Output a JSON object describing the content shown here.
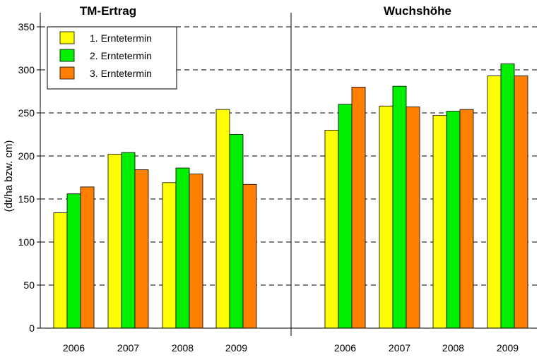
{
  "chart_data": {
    "type": "bar",
    "ylabel": "(dt/ha bzw. cm)",
    "ylim": [
      0,
      350
    ],
    "yticks": [
      0,
      50,
      100,
      150,
      200,
      250,
      300,
      350
    ],
    "grid": "horizontal-dashed",
    "legend_placement": "top-left",
    "series_names": [
      "1. Erntetermin",
      "2. Erntetermin",
      "3. Erntetermin"
    ],
    "colors": [
      "#ffff00",
      "#00ee00",
      "#ff8000"
    ],
    "panels": [
      {
        "title": "TM-Ertrag",
        "categories": [
          "2006",
          "2007",
          "2008",
          "2009"
        ],
        "series": [
          {
            "name": "1. Erntetermin",
            "values": [
              134,
              202,
              169,
              254
            ]
          },
          {
            "name": "2. Erntetermin",
            "values": [
              156,
              204,
              186,
              225
            ]
          },
          {
            "name": "3. Erntetermin",
            "values": [
              164,
              184,
              179,
              167
            ]
          }
        ]
      },
      {
        "title": "Wuchshöhe",
        "categories": [
          "2006",
          "2007",
          "2008",
          "2009"
        ],
        "series": [
          {
            "name": "1. Erntetermin",
            "values": [
              230,
              258,
              247,
              293
            ]
          },
          {
            "name": "2. Erntetermin",
            "values": [
              260,
              281,
              252,
              307
            ]
          },
          {
            "name": "3. Erntetermin",
            "values": [
              280,
              257,
              254,
              293
            ]
          }
        ]
      }
    ]
  }
}
